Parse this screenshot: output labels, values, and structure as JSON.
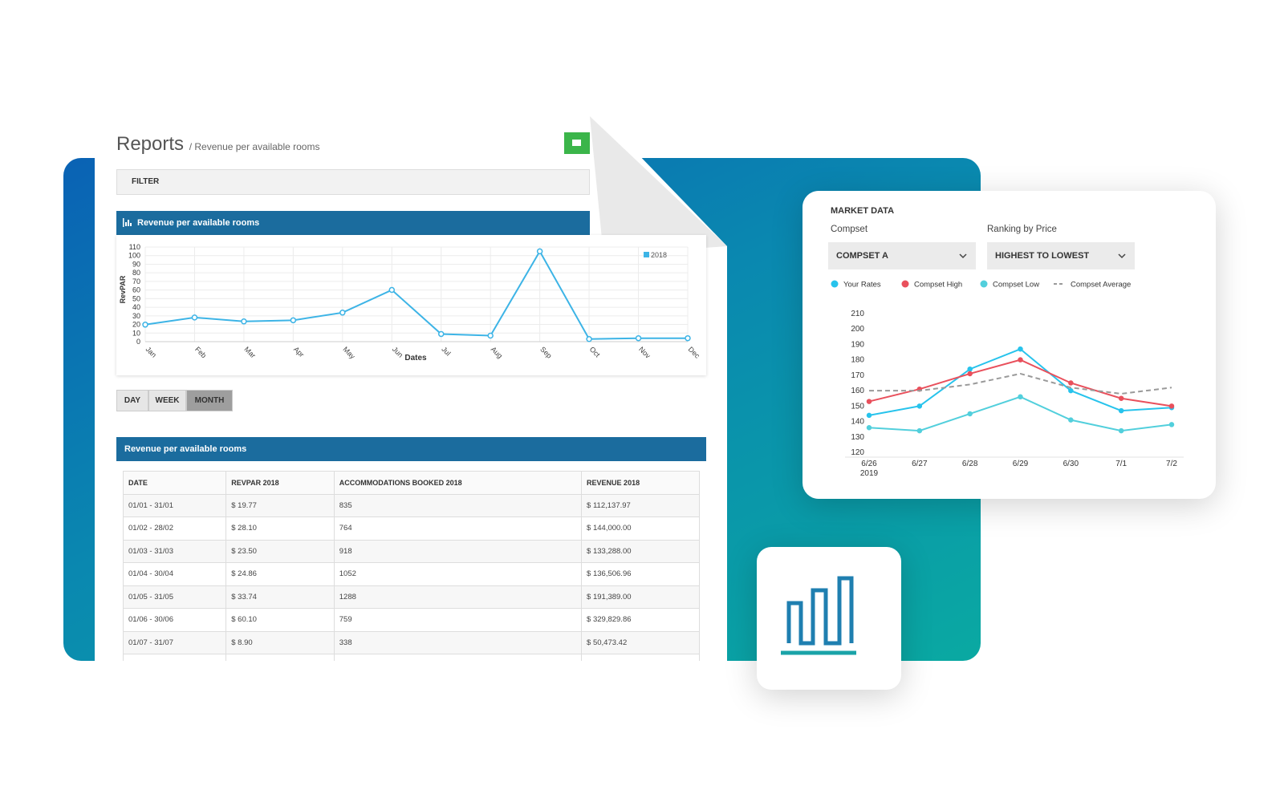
{
  "report": {
    "title": "Reports",
    "subtitle": "/ Revenue per available rooms",
    "filter": "FILTER",
    "buttons": [
      "DAY",
      "WEEK",
      "MONTH"
    ],
    "active_button": 2,
    "table": {
      "title": "Revenue per available rooms",
      "columns": [
        "DATE",
        "REVPAR 2018",
        "ACCOMMODATIONS BOOKED 2018",
        "REVENUE 2018"
      ],
      "rows": [
        [
          "01/01 - 31/01",
          "$ 19.77",
          "835",
          "$ 112,137.97"
        ],
        [
          "01/02 - 28/02",
          "$ 28.10",
          "764",
          "$ 144,000.00"
        ],
        [
          "01/03 - 31/03",
          "$ 23.50",
          "918",
          "$ 133,288.00"
        ],
        [
          "01/04 - 30/04",
          "$ 24.86",
          "1052",
          "$ 136,506.96"
        ],
        [
          "01/05 - 31/05",
          "$ 33.74",
          "1288",
          "$ 191,389.00"
        ],
        [
          "01/06 - 30/06",
          "$ 60.10",
          "759",
          "$ 329,829.86"
        ],
        [
          "01/07 - 31/07",
          "$ 8.90",
          "338",
          "$ 50,473.42"
        ]
      ]
    }
  },
  "market": {
    "title": "MARKET DATA",
    "compset_label": "Compset",
    "compset_value": "COMPSET A",
    "ranking_label": "Ranking by Price",
    "ranking_value": "HIGHEST TO LOWEST"
  },
  "chart_data": [
    {
      "type": "line",
      "title": "Revenue per available rooms",
      "x_label": "Dates",
      "y_label": "RevPAR",
      "categories": [
        "Jan",
        "Feb",
        "Mar",
        "Apr",
        "May",
        "Jun",
        "Jul",
        "Aug",
        "Sep",
        "Oct",
        "Nov",
        "Dec"
      ],
      "series": [
        {
          "name": "2018",
          "color": "#3db4e6",
          "values": [
            19.77,
            28.1,
            23.5,
            24.86,
            33.74,
            60.1,
            8.9,
            7,
            105,
            3,
            4,
            4
          ]
        }
      ],
      "ylim": [
        0,
        110
      ],
      "yticks": [
        0,
        10,
        20,
        30,
        40,
        50,
        60,
        70,
        80,
        90,
        100,
        110
      ],
      "grid": true,
      "legend": "top-right"
    },
    {
      "type": "line",
      "categories": [
        "6/26",
        "6/27",
        "6/28",
        "6/29",
        "6/30",
        "7/1",
        "7/2"
      ],
      "x_year": "2019",
      "series": [
        {
          "name": "Your Rates",
          "color": "#27c3ec",
          "values": [
            144,
            150,
            174,
            187,
            160,
            147,
            149
          ]
        },
        {
          "name": "Compset High",
          "color": "#e9505c",
          "values": [
            153,
            161,
            171,
            180,
            165,
            155,
            150
          ]
        },
        {
          "name": "Compset Low",
          "color": "#52cfdc",
          "values": [
            136,
            134,
            145,
            156,
            141,
            134,
            138
          ]
        },
        {
          "name": "Compset Average",
          "color": "#9a9a9a",
          "dash": true,
          "values": [
            160,
            160,
            164,
            171,
            162,
            158,
            162
          ]
        }
      ],
      "ylim": [
        120,
        210
      ],
      "yticks": [
        120,
        130,
        140,
        150,
        160,
        170,
        180,
        190,
        200,
        210
      ],
      "grid": false,
      "legend": "top"
    }
  ]
}
